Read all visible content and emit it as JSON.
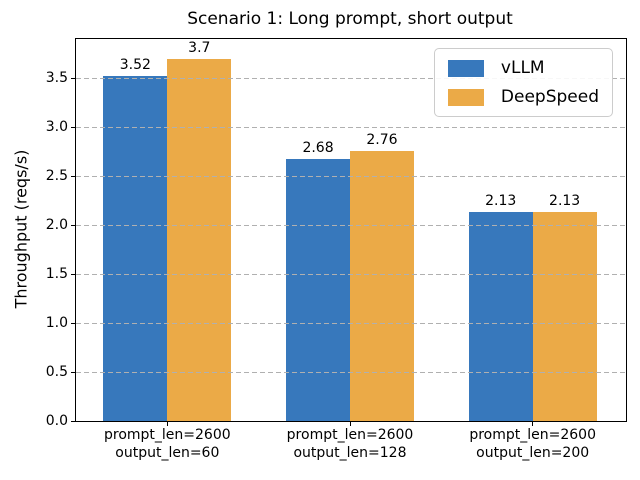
{
  "figure": {
    "background": "#ffffff"
  },
  "chart_data": {
    "type": "bar",
    "title": "Scenario 1: Long prompt, short output",
    "ylabel": "Throughput (reqs/s)",
    "xlabel": "",
    "categories": [
      "prompt_len=2600\noutput_len=60",
      "prompt_len=2600\noutput_len=128",
      "prompt_len=2600\noutput_len=200"
    ],
    "series": [
      {
        "name": "vLLM",
        "color": "#3778bc",
        "values": [
          3.52,
          2.68,
          2.13
        ],
        "labels": [
          "3.52",
          "2.68",
          "2.13"
        ]
      },
      {
        "name": "DeepSpeed",
        "color": "#ebaa47",
        "values": [
          3.7,
          2.76,
          2.13
        ],
        "labels": [
          "3.7",
          "2.76",
          "2.13"
        ]
      }
    ],
    "yticks": {
      "values": [
        0,
        0.5,
        1,
        1.5,
        2,
        2.5,
        3,
        3.5
      ],
      "labels": [
        "0.0",
        "0.5",
        "1.0",
        "1.5",
        "2.0",
        "2.5",
        "3.0",
        "3.5"
      ]
    },
    "ylim": [
      0,
      3.88
    ],
    "bar_width_fraction": 0.35,
    "grid": {
      "axis": "y",
      "linestyle": "dashed",
      "color": "#b0b0b0"
    },
    "legend": {
      "position": "upper right"
    }
  }
}
